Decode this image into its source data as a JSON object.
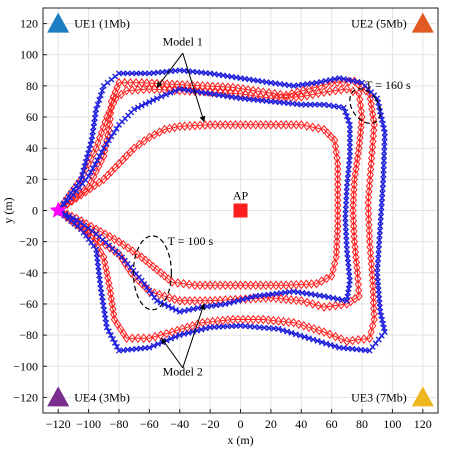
{
  "chart_data": {
    "type": "scatter",
    "xlabel": "x (m)",
    "ylabel": "y (m)",
    "xlim": [
      -130,
      130
    ],
    "ylim": [
      -130,
      130
    ],
    "x_ticks": [
      -120,
      -100,
      -80,
      -60,
      -40,
      -20,
      0,
      20,
      40,
      60,
      80,
      100,
      120
    ],
    "y_ticks": [
      -120,
      -100,
      -80,
      -60,
      -40,
      -20,
      0,
      20,
      40,
      60,
      80,
      100,
      120
    ],
    "grid": true,
    "colors": {
      "model1": "#ff2020",
      "model2": "#1f1fdd",
      "ue1": "#1a7fc1",
      "ue2": "#e05a22",
      "ue3": "#eeb61f",
      "ue4": "#7a2e8e",
      "ap": "#ff1f1f",
      "start": "#ff00ff"
    },
    "markers": [
      {
        "id": "ue1",
        "label": "UE1 (1Mb)",
        "x": -120,
        "y": 120,
        "shape": "triangle"
      },
      {
        "id": "ue2",
        "label": "UE2 (5Mb)",
        "x": 120,
        "y": 120,
        "shape": "triangle"
      },
      {
        "id": "ue3",
        "label": "UE3 (7Mb)",
        "x": 120,
        "y": -120,
        "shape": "triangle"
      },
      {
        "id": "ue4",
        "label": "UE4 (3Mb)",
        "x": -120,
        "y": -120,
        "shape": "triangle"
      },
      {
        "id": "ap",
        "label": "AP",
        "x": 0,
        "y": 0,
        "shape": "square"
      },
      {
        "id": "start",
        "label": "",
        "x": -120,
        "y": 0,
        "shape": "star"
      }
    ],
    "series": [
      {
        "key": "model1",
        "marker": "diamond",
        "loops": [
          {
            "id": "model1-loop-inner",
            "points": [
              [
                -120,
                0
              ],
              [
                -105,
                10
              ],
              [
                -90,
                20
              ],
              [
                -80,
                30
              ],
              [
                -70,
                40
              ],
              [
                -60,
                47
              ],
              [
                -50,
                52
              ],
              [
                -40,
                54
              ],
              [
                -20,
                55
              ],
              [
                0,
                55
              ],
              [
                20,
                55
              ],
              [
                40,
                55
              ],
              [
                55,
                52
              ],
              [
                62,
                45
              ],
              [
                64,
                30
              ],
              [
                64,
                10
              ],
              [
                64,
                -10
              ],
              [
                63,
                -30
              ],
              [
                60,
                -42
              ],
              [
                50,
                -47
              ],
              [
                30,
                -48
              ],
              [
                10,
                -48
              ],
              [
                -10,
                -48
              ],
              [
                -30,
                -48
              ],
              [
                -45,
                -46
              ],
              [
                -55,
                -38
              ],
              [
                -65,
                -30
              ],
              [
                -80,
                -20
              ],
              [
                -95,
                -12
              ],
              [
                -108,
                -5
              ],
              [
                -120,
                0
              ]
            ]
          },
          {
            "id": "model1-loop-mid",
            "points": [
              [
                -120,
                0
              ],
              [
                -105,
                20
              ],
              [
                -95,
                40
              ],
              [
                -88,
                60
              ],
              [
                -82,
                72
              ],
              [
                -75,
                77
              ],
              [
                -60,
                78
              ],
              [
                -40,
                77
              ],
              [
                -20,
                76
              ],
              [
                0,
                75
              ],
              [
                20,
                72
              ],
              [
                40,
                73
              ],
              [
                55,
                76
              ],
              [
                70,
                78
              ],
              [
                78,
                75
              ],
              [
                80,
                60
              ],
              [
                78,
                40
              ],
              [
                75,
                20
              ],
              [
                74,
                0
              ],
              [
                75,
                -20
              ],
              [
                77,
                -40
              ],
              [
                78,
                -55
              ],
              [
                70,
                -60
              ],
              [
                55,
                -62
              ],
              [
                40,
                -58
              ],
              [
                20,
                -56
              ],
              [
                0,
                -57
              ],
              [
                -20,
                -58
              ],
              [
                -40,
                -58
              ],
              [
                -60,
                -52
              ],
              [
                -72,
                -40
              ],
              [
                -80,
                -28
              ],
              [
                -95,
                -18
              ],
              [
                -108,
                -8
              ],
              [
                -120,
                0
              ]
            ]
          },
          {
            "id": "model1-loop-outer",
            "points": [
              [
                -120,
                0
              ],
              [
                -100,
                15
              ],
              [
                -90,
                35
              ],
              [
                -86,
                55
              ],
              [
                -85,
                70
              ],
              [
                -80,
                82
              ],
              [
                -65,
                82
              ],
              [
                -45,
                81
              ],
              [
                -25,
                80
              ],
              [
                -5,
                79
              ],
              [
                15,
                76
              ],
              [
                30,
                74
              ],
              [
                45,
                78
              ],
              [
                60,
                82
              ],
              [
                75,
                83
              ],
              [
                85,
                75
              ],
              [
                88,
                55
              ],
              [
                86,
                30
              ],
              [
                84,
                5
              ],
              [
                85,
                -20
              ],
              [
                87,
                -45
              ],
              [
                88,
                -70
              ],
              [
                85,
                -82
              ],
              [
                70,
                -84
              ],
              [
                55,
                -78
              ],
              [
                35,
                -72
              ],
              [
                15,
                -70
              ],
              [
                -5,
                -70
              ],
              [
                -25,
                -72
              ],
              [
                -45,
                -78
              ],
              [
                -60,
                -82
              ],
              [
                -75,
                -82
              ],
              [
                -83,
                -70
              ],
              [
                -86,
                -50
              ],
              [
                -90,
                -30
              ],
              [
                -100,
                -15
              ],
              [
                -120,
                0
              ]
            ]
          }
        ]
      },
      {
        "key": "model2",
        "marker": "cross",
        "loops": [
          {
            "id": "model2-loop-inner",
            "points": [
              [
                -120,
                0
              ],
              [
                -110,
                10
              ],
              [
                -100,
                22
              ],
              [
                -90,
                40
              ],
              [
                -80,
                55
              ],
              [
                -70,
                65
              ],
              [
                -55,
                72
              ],
              [
                -40,
                78
              ],
              [
                -20,
                75
              ],
              [
                0,
                72
              ],
              [
                20,
                70
              ],
              [
                40,
                68
              ],
              [
                55,
                68
              ],
              [
                68,
                66
              ],
              [
                72,
                55
              ],
              [
                72,
                35
              ],
              [
                70,
                15
              ],
              [
                69,
                -5
              ],
              [
                70,
                -25
              ],
              [
                72,
                -45
              ],
              [
                70,
                -58
              ],
              [
                55,
                -55
              ],
              [
                35,
                -52
              ],
              [
                10,
                -55
              ],
              [
                -10,
                -60
              ],
              [
                -25,
                -62
              ],
              [
                -40,
                -65
              ],
              [
                -55,
                -58
              ],
              [
                -65,
                -45
              ],
              [
                -78,
                -30
              ],
              [
                -95,
                -15
              ],
              [
                -108,
                -6
              ],
              [
                -120,
                0
              ]
            ]
          },
          {
            "id": "model2-loop-outer",
            "points": [
              [
                -120,
                0
              ],
              [
                -105,
                20
              ],
              [
                -98,
                45
              ],
              [
                -95,
                65
              ],
              [
                -90,
                80
              ],
              [
                -80,
                88
              ],
              [
                -60,
                88
              ],
              [
                -40,
                90
              ],
              [
                -20,
                88
              ],
              [
                0,
                85
              ],
              [
                20,
                82
              ],
              [
                35,
                80
              ],
              [
                50,
                82
              ],
              [
                65,
                85
              ],
              [
                80,
                82
              ],
              [
                90,
                72
              ],
              [
                95,
                50
              ],
              [
                94,
                20
              ],
              [
                92,
                -10
              ],
              [
                90,
                -40
              ],
              [
                92,
                -65
              ],
              [
                95,
                -78
              ],
              [
                85,
                -90
              ],
              [
                65,
                -88
              ],
              [
                45,
                -82
              ],
              [
                25,
                -76
              ],
              [
                0,
                -74
              ],
              [
                -20,
                -75
              ],
              [
                -40,
                -80
              ],
              [
                -60,
                -88
              ],
              [
                -80,
                -90
              ],
              [
                -88,
                -75
              ],
              [
                -92,
                -50
              ],
              [
                -95,
                -25
              ],
              [
                -105,
                -12
              ],
              [
                -120,
                0
              ]
            ]
          }
        ]
      }
    ],
    "annotations": [
      {
        "id": "model1",
        "text": "Model 1",
        "x": -38,
        "y": 106
      },
      {
        "id": "model2",
        "text": "Model 2",
        "x": -38,
        "y": -106
      },
      {
        "id": "t100",
        "text": "T = 100 s",
        "x": -48,
        "y": -22
      },
      {
        "id": "t160",
        "text": "T = 160 s",
        "x": 82,
        "y": 78
      }
    ]
  }
}
